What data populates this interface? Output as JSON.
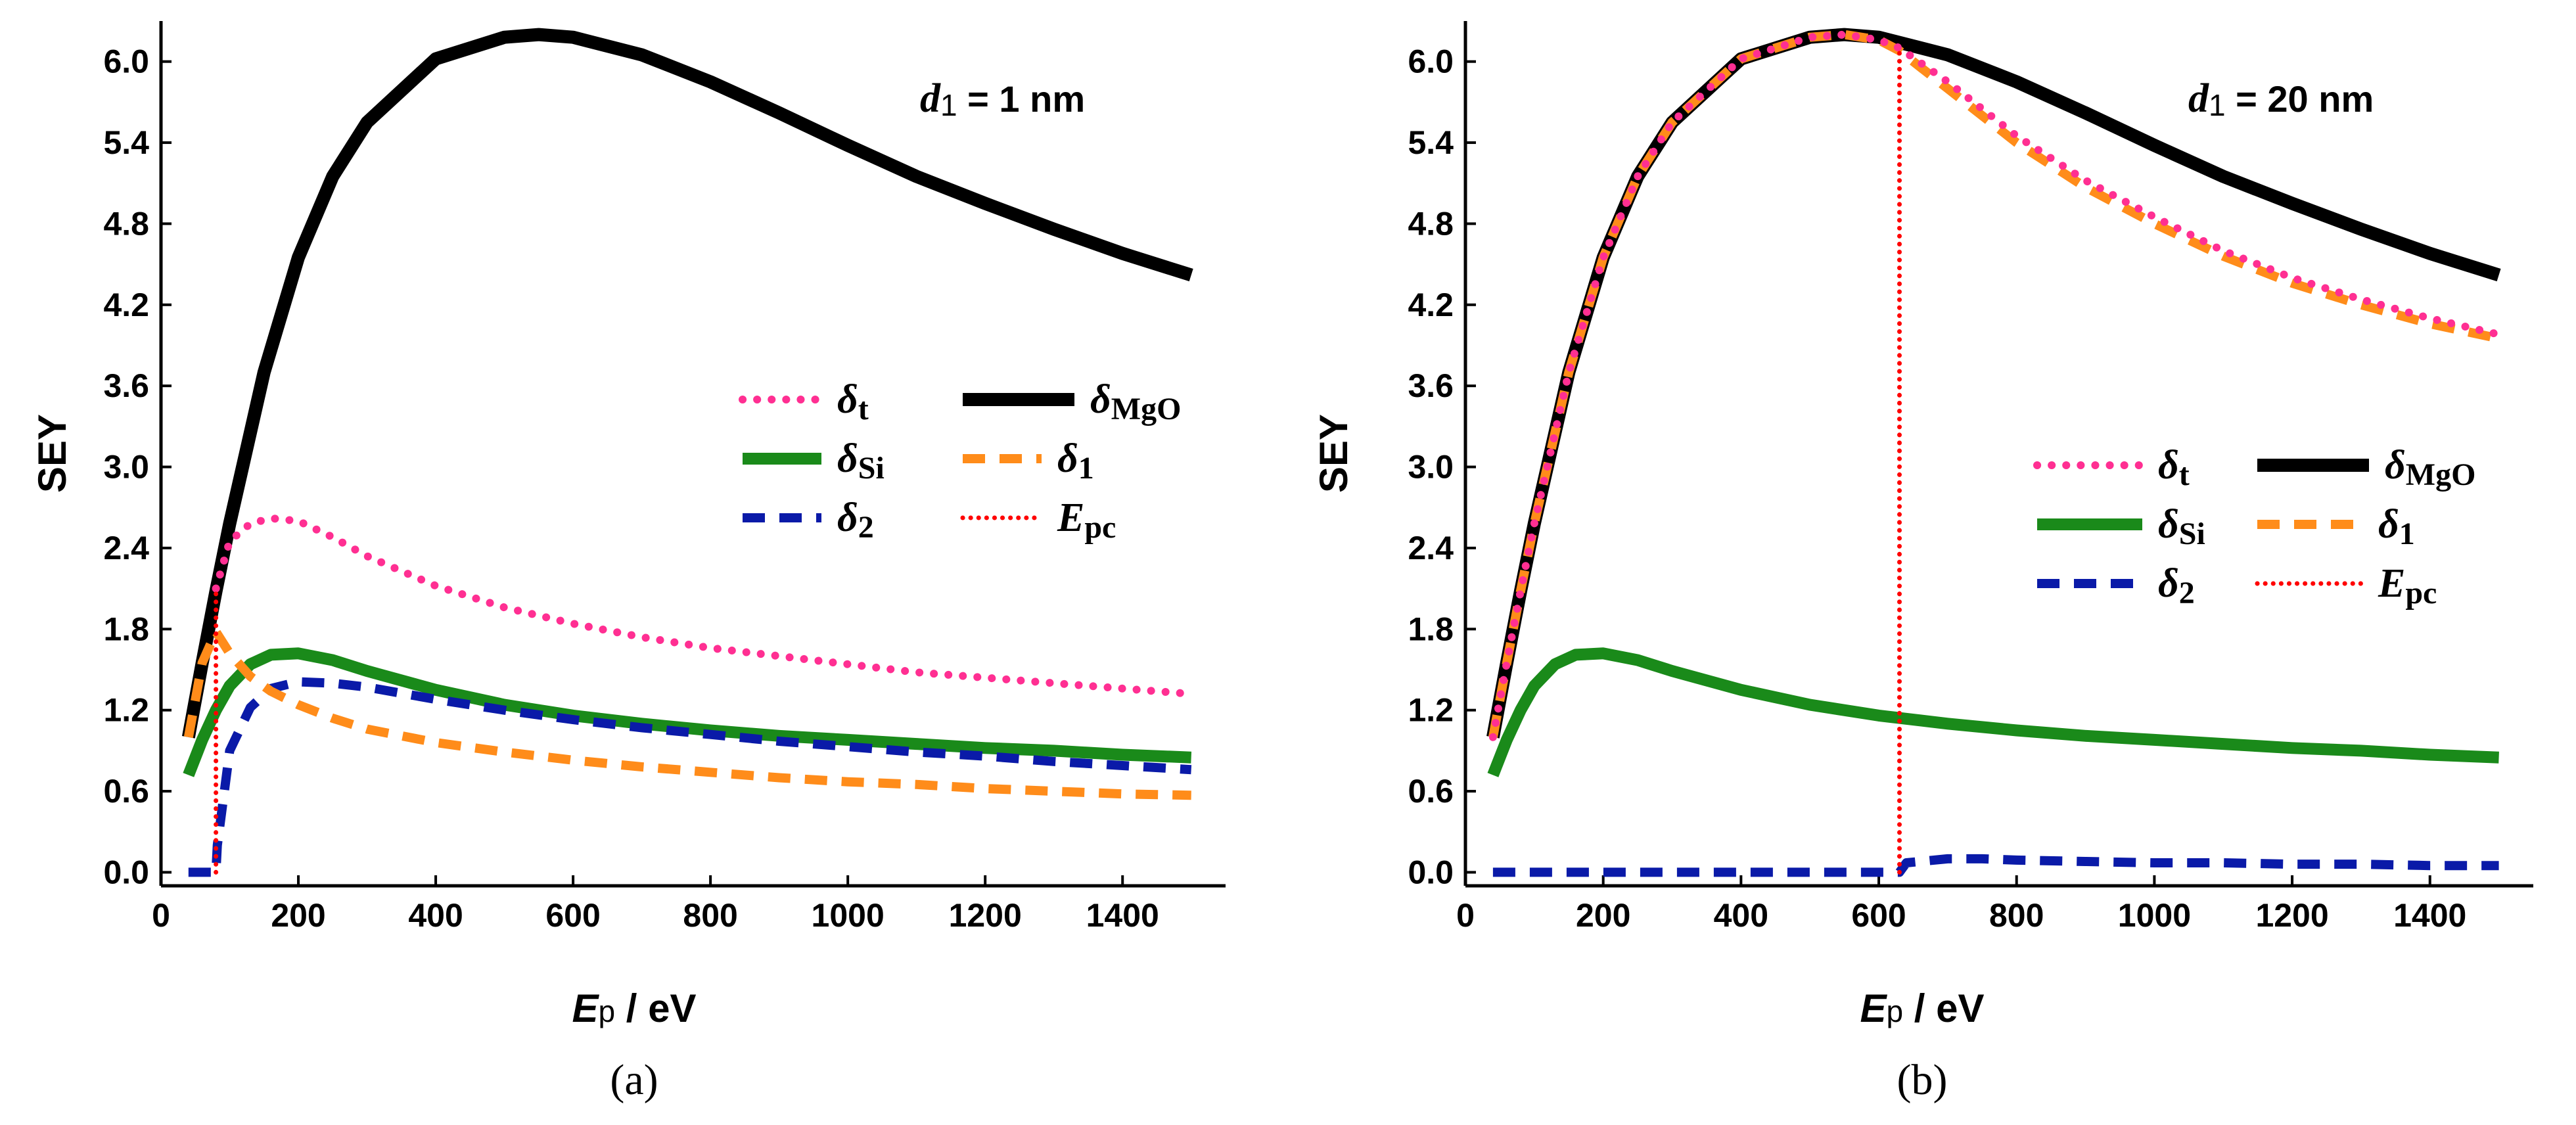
{
  "chart_data": [
    {
      "type": "line",
      "panel_label": "(a)",
      "annotation": "d₁ = 1 nm",
      "ylabel": "SEY",
      "xlabel": "Ep / eV",
      "xlim": [
        0,
        1550
      ],
      "ylim": [
        -0.1,
        6.3
      ],
      "xticks": [
        0,
        200,
        400,
        600,
        800,
        1000,
        1200,
        1400
      ],
      "yticks": [
        0.0,
        0.6,
        1.2,
        1.8,
        2.4,
        3.0,
        3.6,
        4.2,
        4.8,
        5.4,
        6.0
      ],
      "legend": [
        {
          "sym": "δ",
          "sub": "t",
          "key": "t"
        },
        {
          "sym": "δ",
          "sub": "MgO",
          "key": "mgo"
        },
        {
          "sym": "δ",
          "sub": "Si",
          "key": "si"
        },
        {
          "sym": "δ",
          "sub": "1",
          "key": "d1"
        },
        {
          "sym": "δ",
          "sub": "2",
          "key": "d2"
        },
        {
          "sym": "E",
          "sub": "pc",
          "key": "epc"
        }
      ],
      "series": [
        {
          "name": "δMgO",
          "x": [
            40,
            60,
            80,
            100,
            150,
            200,
            250,
            300,
            400,
            500,
            550,
            600,
            700,
            800,
            900,
            1000,
            1100,
            1200,
            1300,
            1400,
            1500
          ],
          "y": [
            1.0,
            1.55,
            2.08,
            2.58,
            3.7,
            4.55,
            5.15,
            5.55,
            6.02,
            6.18,
            6.2,
            6.18,
            6.05,
            5.85,
            5.62,
            5.38,
            5.15,
            4.95,
            4.76,
            4.58,
            4.42
          ]
        },
        {
          "name": "δt",
          "x": [
            80,
            100,
            130,
            160,
            200,
            250,
            300,
            400,
            500,
            600,
            700,
            800,
            900,
            1000,
            1100,
            1200,
            1300,
            1400,
            1500
          ],
          "y": [
            2.1,
            2.45,
            2.58,
            2.62,
            2.6,
            2.48,
            2.34,
            2.12,
            1.96,
            1.84,
            1.74,
            1.66,
            1.6,
            1.54,
            1.48,
            1.44,
            1.4,
            1.36,
            1.32
          ]
        },
        {
          "name": "δSi",
          "x": [
            40,
            60,
            80,
            100,
            130,
            160,
            200,
            250,
            300,
            400,
            500,
            600,
            700,
            800,
            900,
            1000,
            1100,
            1200,
            1300,
            1400,
            1500
          ],
          "y": [
            0.72,
            0.98,
            1.2,
            1.38,
            1.54,
            1.61,
            1.62,
            1.57,
            1.49,
            1.35,
            1.24,
            1.16,
            1.1,
            1.05,
            1.01,
            0.98,
            0.95,
            0.92,
            0.9,
            0.87,
            0.85
          ]
        },
        {
          "name": "δ1",
          "x": [
            40,
            60,
            80,
            100,
            130,
            160,
            200,
            250,
            300,
            400,
            500,
            600,
            700,
            800,
            900,
            1000,
            1100,
            1200,
            1300,
            1400,
            1500
          ],
          "y": [
            1.0,
            1.55,
            1.78,
            1.62,
            1.45,
            1.34,
            1.24,
            1.14,
            1.06,
            0.96,
            0.89,
            0.83,
            0.78,
            0.74,
            0.7,
            0.67,
            0.65,
            0.62,
            0.6,
            0.58,
            0.57
          ]
        },
        {
          "name": "δ2",
          "x": [
            40,
            80,
            82,
            100,
            130,
            160,
            200,
            250,
            300,
            400,
            500,
            600,
            700,
            800,
            900,
            1000,
            1100,
            1200,
            1300,
            1400,
            1500
          ],
          "y": [
            0.0,
            0.0,
            0.2,
            0.9,
            1.22,
            1.36,
            1.41,
            1.4,
            1.37,
            1.28,
            1.2,
            1.13,
            1.07,
            1.02,
            0.97,
            0.93,
            0.89,
            0.86,
            0.82,
            0.79,
            0.76
          ]
        },
        {
          "name": "Epc",
          "x": [
            80,
            80
          ],
          "y": [
            0.0,
            2.08
          ]
        }
      ]
    },
    {
      "type": "line",
      "panel_label": "(b)",
      "annotation": "d₁ = 20 nm",
      "ylabel": "SEY",
      "xlabel": "Ep / eV",
      "xlim": [
        0,
        1550
      ],
      "ylim": [
        -0.1,
        6.3
      ],
      "xticks": [
        0,
        200,
        400,
        600,
        800,
        1000,
        1200,
        1400
      ],
      "yticks": [
        0.0,
        0.6,
        1.2,
        1.8,
        2.4,
        3.0,
        3.6,
        4.2,
        4.8,
        5.4,
        6.0
      ],
      "legend": [
        {
          "sym": "δ",
          "sub": "t",
          "key": "t"
        },
        {
          "sym": "δ",
          "sub": "MgO",
          "key": "mgo"
        },
        {
          "sym": "δ",
          "sub": "Si",
          "key": "si"
        },
        {
          "sym": "δ",
          "sub": "1",
          "key": "d1"
        },
        {
          "sym": "δ",
          "sub": "2",
          "key": "d2"
        },
        {
          "sym": "E",
          "sub": "pc",
          "key": "epc"
        }
      ],
      "series": [
        {
          "name": "δMgO",
          "x": [
            40,
            60,
            80,
            100,
            150,
            200,
            250,
            300,
            400,
            500,
            550,
            600,
            700,
            800,
            900,
            1000,
            1100,
            1200,
            1300,
            1400,
            1500
          ],
          "y": [
            1.0,
            1.55,
            2.08,
            2.58,
            3.7,
            4.55,
            5.15,
            5.55,
            6.02,
            6.18,
            6.2,
            6.18,
            6.05,
            5.85,
            5.62,
            5.38,
            5.15,
            4.95,
            4.76,
            4.58,
            4.42
          ]
        },
        {
          "name": "δt",
          "x": [
            40,
            60,
            80,
            100,
            150,
            200,
            250,
            300,
            400,
            500,
            550,
            600,
            630,
            700,
            800,
            900,
            1000,
            1100,
            1200,
            1300,
            1400,
            1500
          ],
          "y": [
            1.0,
            1.55,
            2.08,
            2.58,
            3.7,
            4.55,
            5.15,
            5.55,
            6.02,
            6.18,
            6.2,
            6.16,
            6.1,
            5.85,
            5.45,
            5.12,
            4.85,
            4.6,
            4.4,
            4.24,
            4.1,
            3.98
          ]
        },
        {
          "name": "δSi",
          "x": [
            40,
            60,
            80,
            100,
            130,
            160,
            200,
            250,
            300,
            400,
            500,
            600,
            700,
            800,
            900,
            1000,
            1100,
            1200,
            1300,
            1400,
            1500
          ],
          "y": [
            0.72,
            0.98,
            1.2,
            1.38,
            1.54,
            1.61,
            1.62,
            1.57,
            1.49,
            1.35,
            1.24,
            1.16,
            1.1,
            1.05,
            1.01,
            0.98,
            0.95,
            0.92,
            0.9,
            0.87,
            0.85
          ]
        },
        {
          "name": "δ1",
          "x": [
            40,
            60,
            80,
            100,
            150,
            200,
            250,
            300,
            400,
            500,
            550,
            600,
            630,
            700,
            800,
            900,
            1000,
            1100,
            1200,
            1300,
            1400,
            1500
          ],
          "y": [
            1.0,
            1.55,
            2.08,
            2.58,
            3.7,
            4.55,
            5.15,
            5.55,
            6.02,
            6.18,
            6.2,
            6.16,
            6.08,
            5.8,
            5.4,
            5.07,
            4.8,
            4.56,
            4.36,
            4.2,
            4.06,
            3.95
          ]
        },
        {
          "name": "δ2",
          "x": [
            40,
            630,
            640,
            700,
            750,
            800,
            900,
            1000,
            1100,
            1200,
            1300,
            1400,
            1500
          ],
          "y": [
            0.0,
            0.0,
            0.07,
            0.1,
            0.1,
            0.09,
            0.08,
            0.07,
            0.07,
            0.06,
            0.06,
            0.05,
            0.05
          ]
        },
        {
          "name": "Epc",
          "x": [
            630,
            630
          ],
          "y": [
            0.0,
            6.1
          ]
        }
      ]
    }
  ]
}
